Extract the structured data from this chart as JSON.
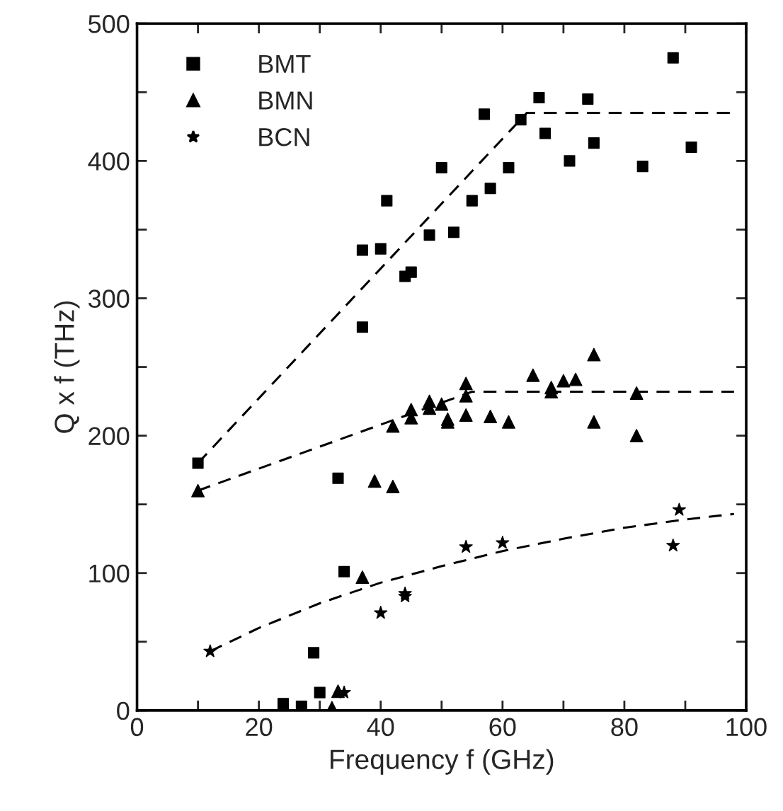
{
  "chart_data": {
    "type": "scatter",
    "xlabel": "Frequency f (GHz)",
    "ylabel": "Q x f (THz)",
    "xlim": [
      0,
      100
    ],
    "ylim": [
      0,
      500
    ],
    "xticks": [
      0,
      {
        "value": 10,
        "label": null
      },
      20,
      {
        "value": 30,
        "label": null
      },
      40,
      {
        "value": 50,
        "label": null
      },
      60,
      {
        "value": 70,
        "label": null
      },
      80,
      {
        "value": 90,
        "label": null
      },
      100
    ],
    "yticks": [
      0,
      {
        "value": 50,
        "label": null
      },
      100,
      {
        "value": 150,
        "label": null
      },
      200,
      {
        "value": 250,
        "label": null
      },
      300,
      {
        "value": 350,
        "label": null
      },
      400,
      {
        "value": 450,
        "label": null
      },
      500
    ],
    "grid": false,
    "legend": "top left",
    "series": [
      {
        "name": "BMT",
        "color": "#000000",
        "marker": "square",
        "x": [
          10,
          33,
          34,
          29,
          24,
          27,
          30,
          37,
          37,
          40,
          41,
          44,
          45,
          48,
          50,
          52,
          55,
          57,
          58,
          61,
          63,
          66,
          67,
          71,
          74,
          75,
          83,
          88,
          91
        ],
        "values": [
          180,
          169,
          101,
          42,
          5,
          3,
          13,
          335,
          279,
          336,
          371,
          316,
          319,
          346,
          395,
          348,
          371,
          434,
          380,
          395,
          430,
          446,
          420,
          400,
          445,
          413,
          396,
          475,
          410
        ]
      },
      {
        "name": "BMN",
        "color": "#000000",
        "marker": "triangle",
        "x": [
          10,
          33,
          32,
          37,
          39,
          42,
          42,
          45,
          45,
          48,
          48,
          50,
          51,
          51,
          54,
          54,
          54,
          58,
          61,
          65,
          68,
          68,
          70,
          72,
          75,
          75,
          82,
          82
        ],
        "values": [
          160,
          14,
          2,
          97,
          167,
          163,
          207,
          213,
          219,
          220,
          225,
          223,
          210,
          212,
          238,
          229,
          215,
          214,
          210,
          244,
          235,
          232,
          240,
          241,
          259,
          210,
          231,
          200
        ]
      },
      {
        "name": "BCN",
        "color": "#000000",
        "marker": "star",
        "x": [
          12,
          34,
          40,
          44,
          44,
          54,
          60,
          88,
          89
        ],
        "values": [
          43,
          13,
          71,
          85,
          83,
          119,
          122,
          120,
          146
        ]
      },
      {
        "type": "line",
        "color": "#000000",
        "line_style": "dashed",
        "marker": "none",
        "x": [
          10,
          64,
          98
        ],
        "values": [
          180,
          435,
          435
        ]
      },
      {
        "type": "line",
        "color": "#000000",
        "line_style": "dashed",
        "marker": "none",
        "x": [
          10,
          55,
          98
        ],
        "values": [
          160,
          232,
          232
        ]
      },
      {
        "type": "line",
        "color": "#000000",
        "line_style": "dashed",
        "marker": "none",
        "x": [
          12,
          20,
          30,
          40,
          50,
          60,
          70,
          80,
          90,
          98
        ],
        "values": [
          43,
          60,
          78,
          93,
          105,
          116,
          125,
          133,
          139,
          143
        ]
      }
    ]
  }
}
